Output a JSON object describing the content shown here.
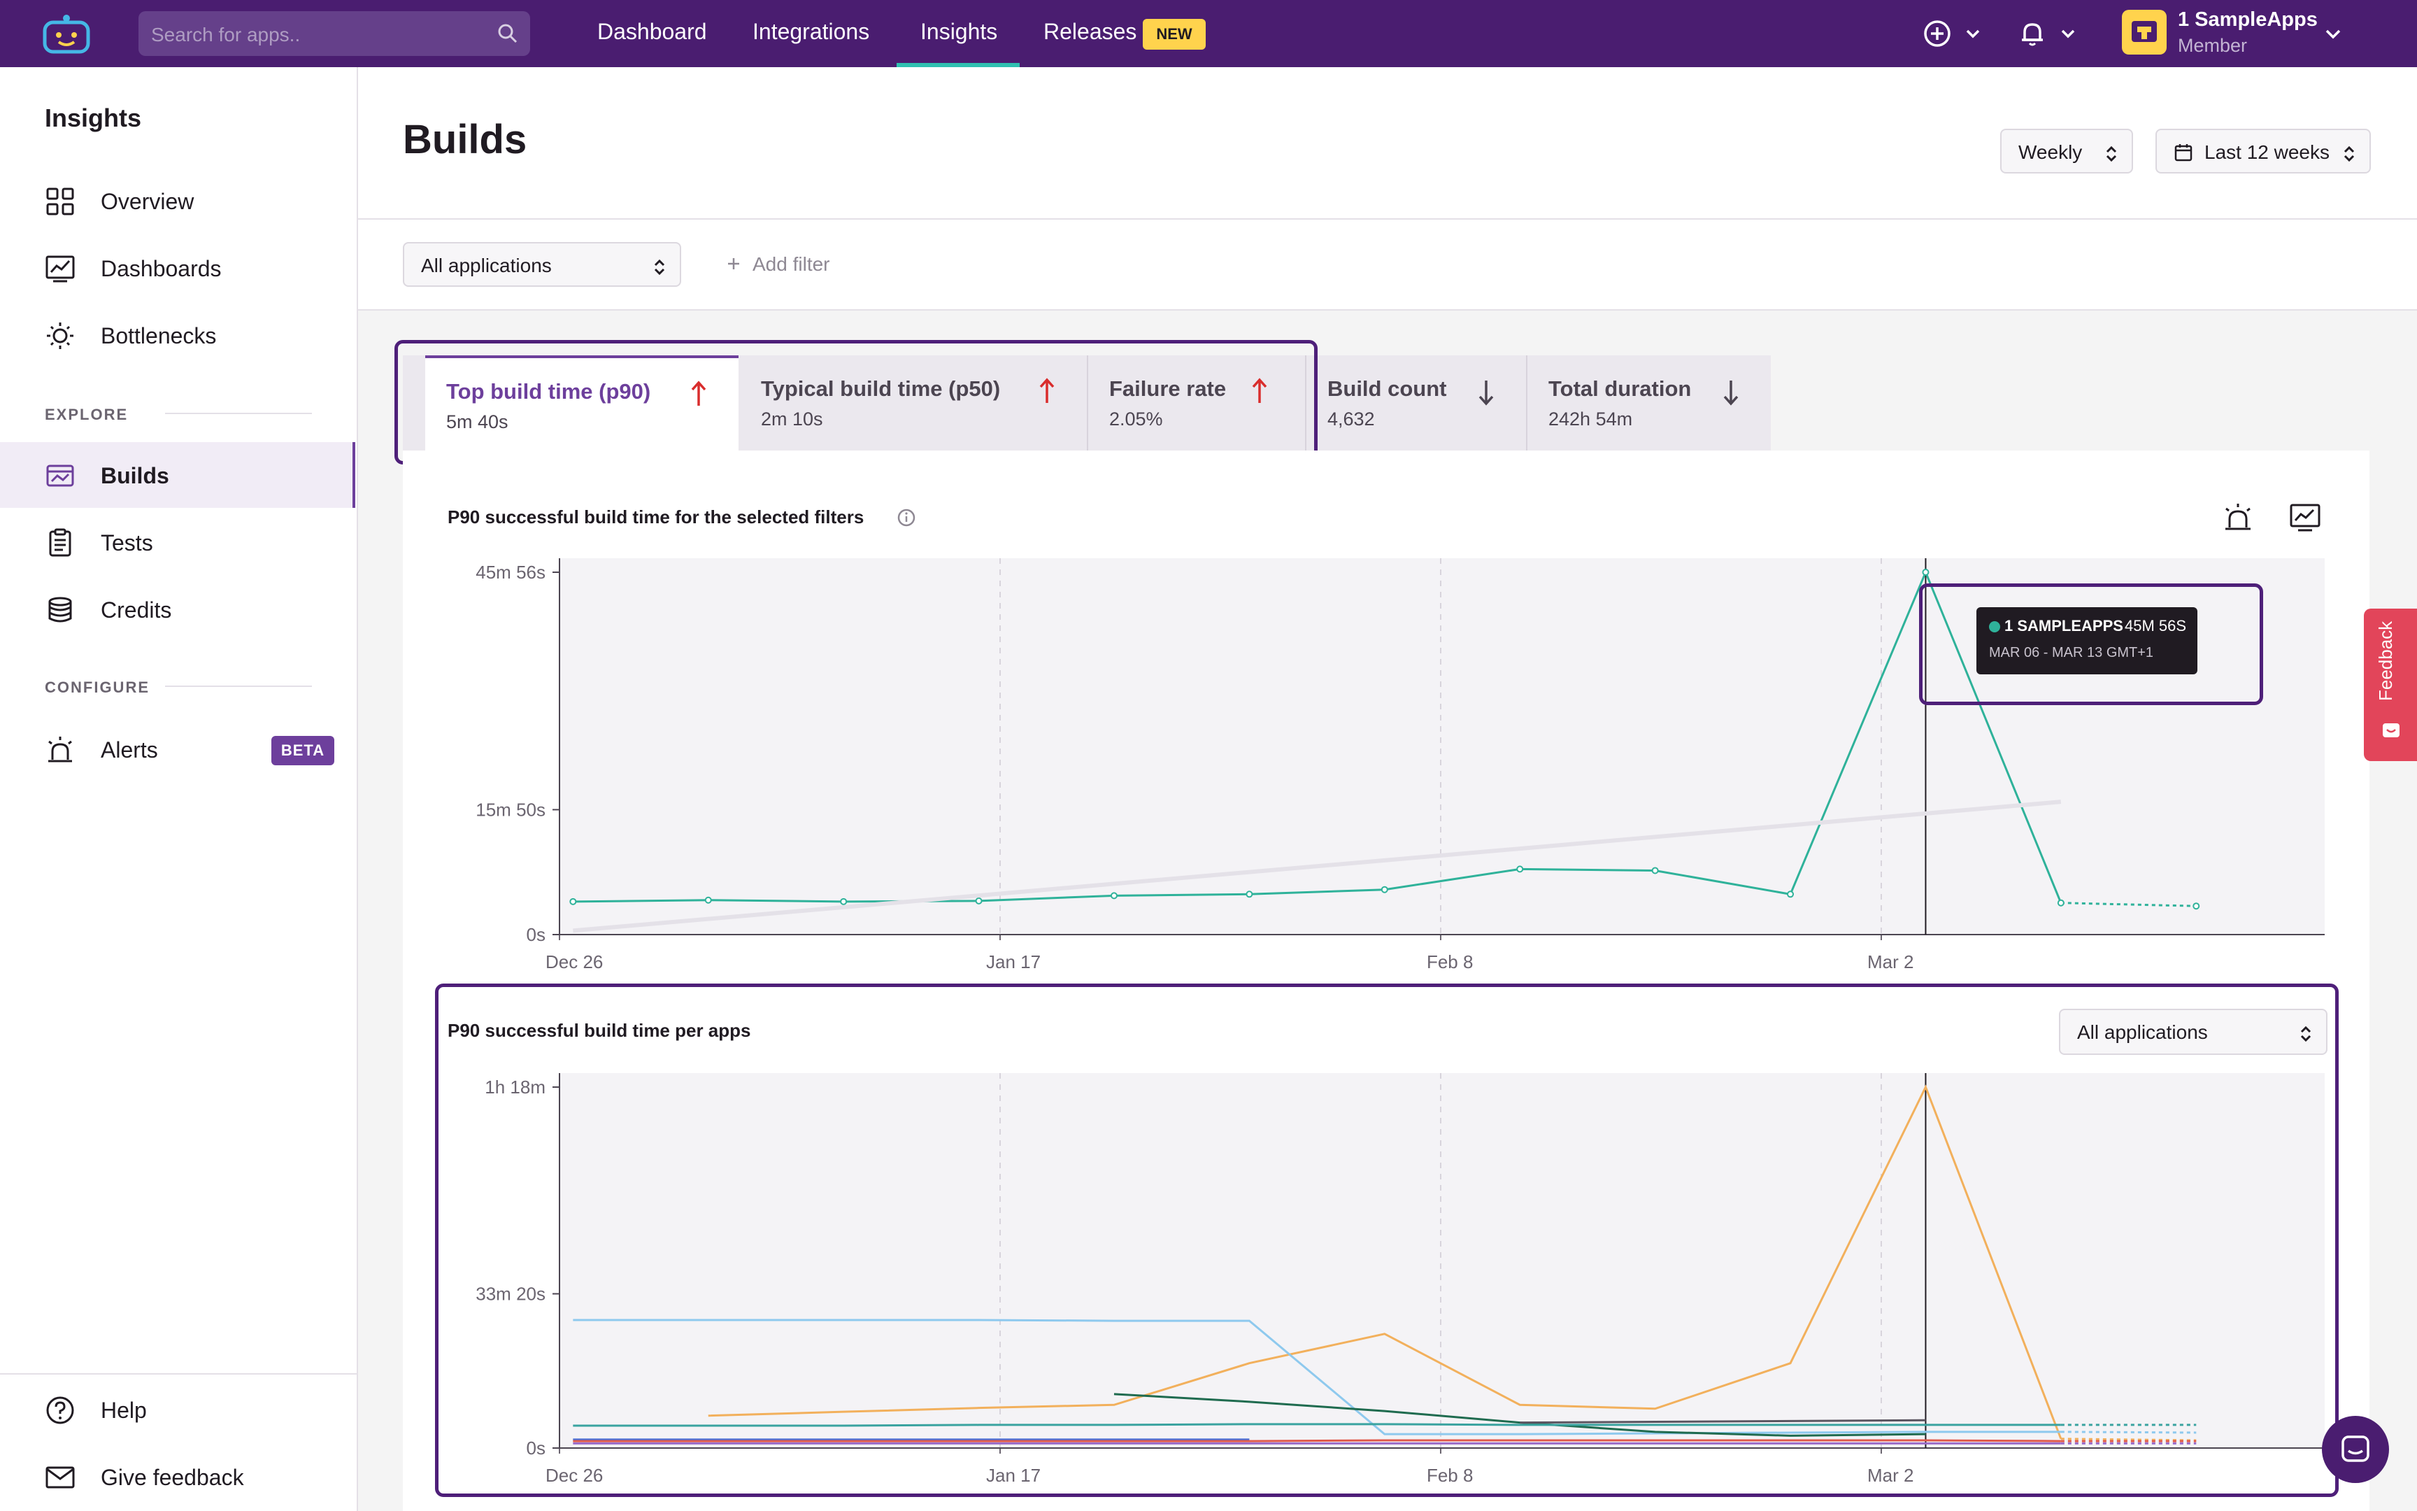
{
  "topbar": {
    "search_placeholder": "Search for apps..",
    "nav": [
      "Dashboard",
      "Integrations",
      "Insights",
      "Releases"
    ],
    "active_nav": "Insights",
    "new_badge": "NEW",
    "account_name": "1 SampleApps",
    "account_role": "Member"
  },
  "sidebar": {
    "title": "Insights",
    "items": [
      {
        "label": "Overview",
        "icon": "grid-icon"
      },
      {
        "label": "Dashboards",
        "icon": "chart-line-icon"
      },
      {
        "label": "Bottlenecks",
        "icon": "bulb-icon"
      }
    ],
    "explore_label": "EXPLORE",
    "explore_items": [
      {
        "label": "Builds",
        "icon": "builds-icon",
        "active": true
      },
      {
        "label": "Tests",
        "icon": "clipboard-icon"
      },
      {
        "label": "Credits",
        "icon": "database-icon"
      }
    ],
    "configure_label": "CONFIGURE",
    "configure_items": [
      {
        "label": "Alerts",
        "icon": "siren-icon",
        "badge": "BETA"
      }
    ],
    "bottom_items": [
      {
        "label": "Help",
        "icon": "help-icon"
      },
      {
        "label": "Give feedback",
        "icon": "mail-icon"
      }
    ]
  },
  "header": {
    "title": "Builds",
    "interval": "Weekly",
    "range": "Last 12 weeks"
  },
  "filters": {
    "app_select": "All applications",
    "add_filter": "Add filter"
  },
  "tabs": [
    {
      "title": "Top build time (p90)",
      "value": "5m 40s",
      "trend": "up",
      "active": true
    },
    {
      "title": "Typical build time (p50)",
      "value": "2m 10s",
      "trend": "up"
    },
    {
      "title": "Failure rate",
      "value": "2.05%",
      "trend": "up"
    },
    {
      "title": "Build count",
      "value": "4,632",
      "trend": "down"
    },
    {
      "title": "Total duration",
      "value": "242h 54m",
      "trend": "down"
    }
  ],
  "colors": {
    "brand": "#4a1d70",
    "accent": "#6d3f9c",
    "teal": "#2fb29a",
    "trend_up": "#d92d2d",
    "trend_down": "#4c4551"
  },
  "chart1": {
    "title": "P90 successful build time for the selected filters",
    "tooltip": {
      "name": "1 SAMPLEAPPS",
      "value": "45M 56S",
      "range": "MAR 06 - MAR 13 GMT+1"
    }
  },
  "chart2": {
    "title": "P90 successful build time per apps",
    "select": "All applications"
  },
  "feedback_tab": "Feedback",
  "chart_data": [
    {
      "type": "line",
      "title": "P90 successful build time for the selected filters",
      "ylabel": "",
      "y_unit": "seconds",
      "yticks": [
        {
          "value": 0,
          "label": "0s"
        },
        {
          "value": 950,
          "label": "15m 50s"
        },
        {
          "value": 2756,
          "label": "45m 56s"
        }
      ],
      "ylim": [
        0,
        2756
      ],
      "xticks": [
        "Dec 26",
        "Jan 17",
        "Feb 8",
        "Mar 2"
      ],
      "x": [
        "Dec 25",
        "Jan 1",
        "Jan 8",
        "Jan 15",
        "Jan 22",
        "Jan 29",
        "Feb 5",
        "Feb 12",
        "Feb 19",
        "Feb 26",
        "Mar 6",
        "Mar 13",
        "Mar 20"
      ],
      "series": [
        {
          "name": "1 SampleApps",
          "color": "#2fb29a",
          "values": [
            251,
            262,
            251,
            256,
            296,
            307,
            342,
            498,
            487,
            307,
            2756,
            241,
            217
          ]
        },
        {
          "color": "#e4e1e8",
          "kind": "trend",
          "values": [
            30,
            null,
            null,
            null,
            null,
            null,
            null,
            null,
            null,
            null,
            null,
            1010,
            null
          ]
        }
      ],
      "projected_from_index": 11,
      "tooltip_index": 10
    },
    {
      "type": "line",
      "title": "P90 successful build time per apps",
      "y_unit": "seconds",
      "yticks": [
        {
          "value": 0,
          "label": "0s"
        },
        {
          "value": 2000,
          "label": "33m 20s"
        },
        {
          "value": 4680,
          "label": "1h 18m"
        }
      ],
      "ylim": [
        0,
        4680
      ],
      "xticks": [
        "Dec 26",
        "Jan 17",
        "Feb 8",
        "Mar 2"
      ],
      "x": [
        "Dec 25",
        "Jan 1",
        "Jan 8",
        "Jan 15",
        "Jan 22",
        "Jan 29",
        "Feb 5",
        "Feb 12",
        "Feb 19",
        "Feb 26",
        "Mar 6",
        "Mar 13",
        "Mar 20"
      ],
      "series": [
        {
          "color": "#f2b05c",
          "values": [
            null,
            420,
            470,
            520,
            560,
            1100,
            1480,
            560,
            510,
            1100,
            4680,
            120,
            100
          ]
        },
        {
          "color": "#8ec9ee",
          "values": [
            1660,
            1660,
            1660,
            1660,
            1650,
            1650,
            180,
            180,
            190,
            200,
            210,
            210,
            200
          ]
        },
        {
          "color": "#1f6b4f",
          "values": [
            null,
            null,
            null,
            null,
            700,
            600,
            480,
            330,
            210,
            160,
            180,
            null,
            null
          ]
        },
        {
          "color": "#5b5560",
          "values": [
            null,
            null,
            null,
            null,
            null,
            null,
            null,
            330,
            340,
            350,
            360,
            null,
            null
          ]
        },
        {
          "color": "#3aa3a0",
          "values": [
            290,
            290,
            290,
            300,
            300,
            310,
            310,
            300,
            300,
            300,
            300,
            300,
            300
          ]
        },
        {
          "color": "#4a6fd6",
          "values": [
            110,
            110,
            110,
            110,
            110,
            110,
            null,
            null,
            null,
            null,
            null,
            null,
            null
          ]
        },
        {
          "color": "#e05a4b",
          "values": [
            90,
            90,
            90,
            90,
            90,
            90,
            100,
            100,
            100,
            100,
            100,
            90,
            90
          ]
        },
        {
          "color": "#9b6cc9",
          "values": [
            60,
            60,
            60,
            60,
            60,
            60,
            60,
            60,
            60,
            60,
            60,
            60,
            60
          ]
        }
      ],
      "projected_from_index": 11,
      "tooltip_index": 10
    }
  ]
}
